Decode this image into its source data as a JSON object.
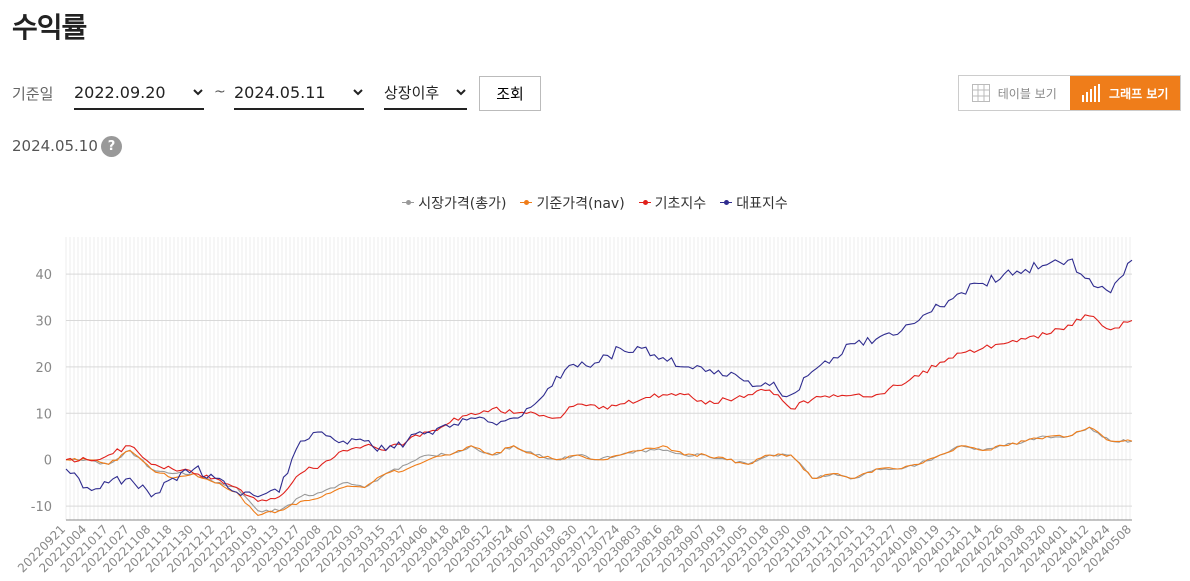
{
  "page": {
    "title": "수익률",
    "filter_label": "기준일",
    "date_from": "2022.09.20",
    "tilde": "~",
    "date_to": "2024.05.11",
    "period": "상장이후",
    "search_label": "조회",
    "table_view_label": "테이블 보기",
    "graph_view_label": "그래프 보기",
    "as_of": "2024.05.10",
    "help_symbol": "?",
    "accent_color": "#ef7d1a"
  },
  "chart_data": {
    "type": "line",
    "title": "",
    "xlabel": "",
    "ylabel": "",
    "ylim": [
      -13,
      48
    ],
    "yticks": [
      -10,
      0,
      10,
      20,
      30,
      40
    ],
    "grid": true,
    "legend_position": "top-center",
    "categories": [
      "20220921",
      "20221004",
      "20221017",
      "20221027",
      "20221108",
      "20221118",
      "20221130",
      "20221212",
      "20221222",
      "20230103",
      "20230113",
      "20230127",
      "20230208",
      "20230220",
      "20230303",
      "20230315",
      "20230327",
      "20230406",
      "20230418",
      "20230428",
      "20230512",
      "20230524",
      "20230607",
      "20230619",
      "20230630",
      "20230712",
      "20230724",
      "20230803",
      "20230816",
      "20230828",
      "20230907",
      "20230919",
      "20231005",
      "20231018",
      "20231030",
      "20231109",
      "20231121",
      "20231201",
      "20231213",
      "20231227",
      "20240109",
      "20240119",
      "20240131",
      "20240214",
      "20240226",
      "20240308",
      "20240320",
      "20240401",
      "20240412",
      "20240424",
      "20240508"
    ],
    "series": [
      {
        "name": "시장가격(총가)",
        "color": "#999999",
        "values": [
          0,
          0,
          -1,
          2,
          -2,
          -3,
          -3,
          -5,
          -6,
          -11,
          -11,
          -8,
          -7,
          -5,
          -6,
          -3,
          -1,
          1,
          1,
          3,
          1,
          3,
          1,
          0,
          1,
          0,
          1,
          2,
          2,
          1,
          1,
          0,
          -1,
          1,
          1,
          -4,
          -3,
          -4,
          -2,
          -2,
          -1,
          1,
          3,
          2,
          3,
          4,
          5,
          5,
          7,
          4,
          4
        ]
      },
      {
        "name": "기준가격(nav)",
        "color": "#ef7d1a",
        "values": [
          0,
          0,
          -1,
          2,
          -2,
          -4,
          -3,
          -5,
          -7,
          -12,
          -11,
          -9,
          -8,
          -6,
          -6,
          -3,
          -2,
          0,
          1,
          3,
          1,
          3,
          1,
          0,
          1,
          0,
          1,
          2,
          3,
          1,
          1,
          0,
          -1,
          1,
          1,
          -4,
          -3,
          -4,
          -2,
          -2,
          -1,
          1,
          3,
          2,
          3,
          4,
          5,
          5,
          7,
          4,
          4
        ]
      },
      {
        "name": "기초지수",
        "color": "#e0201b",
        "values": [
          0,
          0,
          1,
          3,
          -1,
          -2,
          -3,
          -4,
          -6,
          -9,
          -8,
          -3,
          -1,
          2,
          3,
          2,
          4,
          6,
          8,
          10,
          11,
          10,
          10,
          9,
          12,
          11,
          12,
          13,
          14,
          14,
          12,
          13,
          14,
          15,
          11,
          13,
          14,
          14,
          14,
          16,
          18,
          21,
          23,
          24,
          25,
          26,
          27,
          29,
          31,
          28,
          30
        ]
      },
      {
        "name": "대표지수",
        "color": "#2f2c8f",
        "values": [
          -2,
          -6,
          -5,
          -4,
          -8,
          -4,
          -2,
          -4,
          -7,
          -8,
          -7,
          4,
          6,
          4,
          4,
          2,
          4,
          6,
          7,
          9,
          8,
          9,
          12,
          18,
          20,
          21,
          24,
          24,
          22,
          20,
          19,
          18,
          17,
          16,
          14,
          19,
          22,
          25,
          26,
          27,
          30,
          33,
          36,
          38,
          40,
          41,
          42,
          43,
          39,
          36,
          43
        ]
      }
    ]
  }
}
